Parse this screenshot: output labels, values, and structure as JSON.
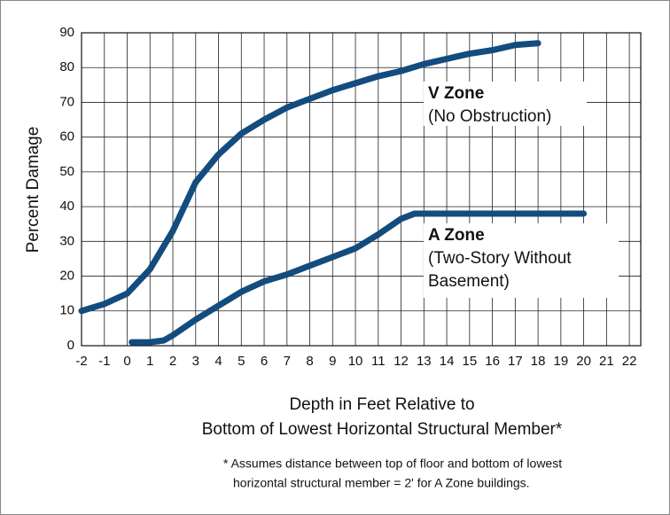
{
  "chart_data": {
    "type": "line",
    "xlabel": [
      "Depth in Feet Relative to",
      "Bottom of Lowest Horizontal Structural Member*"
    ],
    "ylabel": "Percent Damage",
    "footnote": [
      "* Assumes distance between top of floor and bottom of lowest",
      "horizontal structural member = 2' for A Zone buildings."
    ],
    "xlim": [
      -2,
      22.5
    ],
    "ylim": [
      0,
      90
    ],
    "xticks": [
      -2,
      -1,
      0,
      1,
      2,
      3,
      4,
      5,
      6,
      7,
      8,
      9,
      10,
      11,
      12,
      13,
      14,
      15,
      16,
      17,
      18,
      19,
      20,
      21,
      22
    ],
    "yticks": [
      0,
      10,
      20,
      30,
      40,
      50,
      60,
      70,
      80,
      90
    ],
    "grid": true,
    "series": [
      {
        "name": "V Zone",
        "description": [
          "(No Obstruction)"
        ],
        "color": "#134c7e",
        "x": [
          -2,
          -1,
          0,
          1,
          2,
          3,
          4,
          5,
          6,
          7,
          8,
          9,
          10,
          11,
          12,
          13,
          14,
          15,
          16,
          17,
          18
        ],
        "values": [
          10,
          12,
          15,
          22,
          33,
          47,
          55,
          61,
          65,
          68.5,
          71,
          73.5,
          75.5,
          77.5,
          79,
          81,
          82.5,
          84,
          85,
          86.5,
          87
        ]
      },
      {
        "name": "A Zone",
        "description": [
          "(Two-Story Without",
          "Basement)"
        ],
        "color": "#134c7e",
        "x": [
          0.2,
          1,
          1.6,
          2,
          3,
          4,
          5,
          6,
          7,
          8,
          9,
          10,
          11,
          12,
          12.6,
          14,
          16,
          18,
          20
        ],
        "values": [
          1,
          1,
          1.5,
          3,
          7.5,
          11.5,
          15.5,
          18.5,
          20.5,
          23,
          25.5,
          28,
          32,
          36.5,
          38,
          38,
          38,
          38,
          38
        ]
      }
    ]
  }
}
